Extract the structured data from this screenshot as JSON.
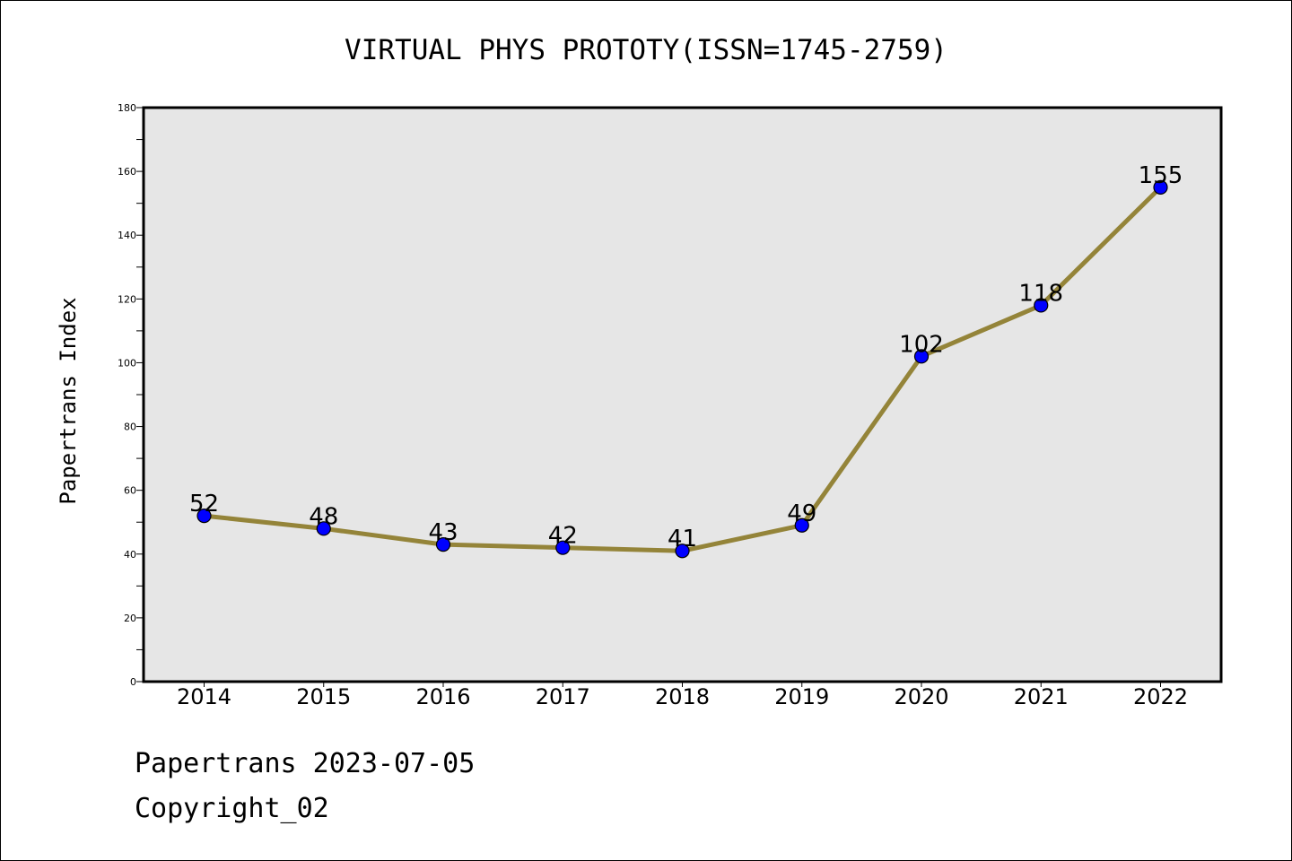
{
  "chart_data": {
    "type": "line",
    "title": "VIRTUAL PHYS PROTOTY(ISSN=1745-2759)",
    "xlabel": "",
    "ylabel": "Papertrans Index",
    "categories": [
      "2014",
      "2015",
      "2016",
      "2017",
      "2018",
      "2019",
      "2020",
      "2021",
      "2022"
    ],
    "series": [
      {
        "values": [
          52,
          48,
          43,
          42,
          41,
          49,
          102,
          118,
          155
        ]
      }
    ],
    "ylim": [
      0,
      180
    ],
    "yticks": [
      0,
      20,
      40,
      60,
      80,
      100,
      120,
      140,
      160,
      180
    ],
    "grid": false,
    "data_labels": true,
    "colors": {
      "line": "#948439",
      "marker": "#0000ff",
      "plot_background": "#e6e6e6"
    }
  },
  "footer": {
    "line1": "Papertrans 2023-07-05",
    "line2": "Copyright_02"
  }
}
